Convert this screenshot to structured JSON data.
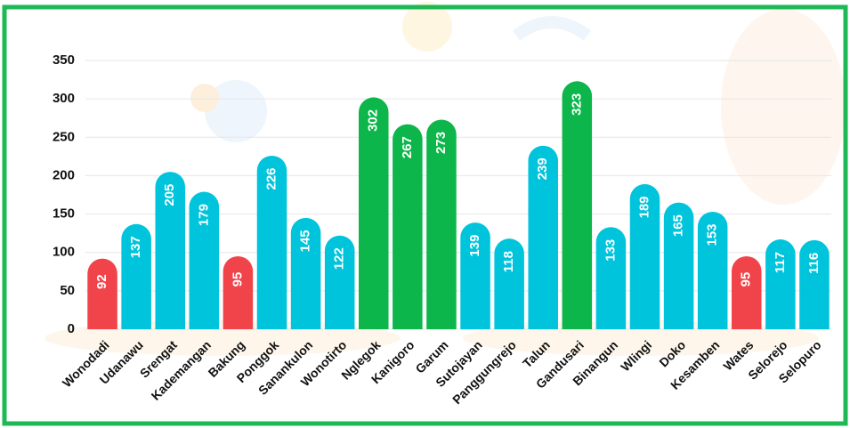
{
  "chart_data": {
    "type": "bar",
    "categories": [
      "Wonodadi",
      "Udanawu",
      "Srengat",
      "Kademangan",
      "Bakung",
      "Ponggok",
      "Sanankulon",
      "Wonotirto",
      "Nglegok",
      "Kanigoro",
      "Garum",
      "Sutojayan",
      "Panggungrejo",
      "Talun",
      "Gandusari",
      "Binangun",
      "Wlingi",
      "Doko",
      "Kesamben",
      "Wates",
      "Selorejo",
      "Selopuro"
    ],
    "values": [
      92,
      137,
      205,
      179,
      95,
      226,
      145,
      122,
      302,
      267,
      273,
      139,
      118,
      239,
      323,
      133,
      189,
      165,
      153,
      95,
      117,
      116
    ],
    "colors": [
      "#f0444a",
      "#00c4dc",
      "#00c4dc",
      "#00c4dc",
      "#f0444a",
      "#00c4dc",
      "#00c4dc",
      "#00c4dc",
      "#0cb64a",
      "#0cb64a",
      "#0cb64a",
      "#00c4dc",
      "#00c4dc",
      "#00c4dc",
      "#0cb64a",
      "#00c4dc",
      "#00c4dc",
      "#00c4dc",
      "#00c4dc",
      "#f0444a",
      "#00c4dc",
      "#00c4dc"
    ],
    "ylim": [
      0,
      350
    ],
    "yticks": [
      0,
      50,
      100,
      150,
      200,
      250,
      300,
      350
    ],
    "grid": true
  }
}
